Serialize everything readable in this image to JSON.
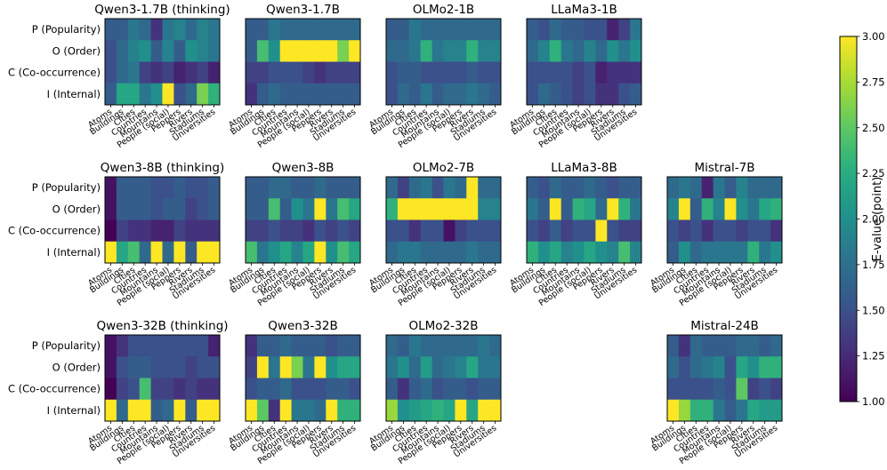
{
  "chart_data": {
    "type": "heatmap",
    "metric_label": "E-value (point)",
    "colormap": "viridis",
    "vmin": 1.0,
    "vmax": 3.0,
    "colorbar_ticks": [
      "1.00",
      "1.25",
      "1.50",
      "1.75",
      "2.00",
      "2.25",
      "2.50",
      "2.75",
      "3.00"
    ],
    "rows": [
      "P (Popularity)",
      "O (Order)",
      "C (Co-occurrence)",
      "I (Internal)"
    ],
    "columns": [
      "Atoms",
      "Buildings",
      "Cities",
      "Countries",
      "Mountains",
      "People (social)",
      "Peppers",
      "Rivers",
      "Stadiums",
      "Universities"
    ],
    "panels": [
      {
        "title": "Qwen3-1.7B (thinking)",
        "values": [
          [
            1.6,
            1.6,
            1.8,
            1.7,
            1.3,
            1.8,
            1.9,
            1.7,
            1.9,
            1.8
          ],
          [
            1.5,
            1.7,
            1.9,
            2.0,
            1.6,
            1.9,
            1.6,
            2.0,
            1.9,
            1.8
          ],
          [
            1.5,
            1.7,
            1.8,
            1.4,
            1.3,
            1.4,
            1.2,
            1.3,
            1.4,
            1.2
          ],
          [
            1.6,
            2.2,
            2.2,
            1.8,
            2.0,
            3.0,
            1.5,
            1.7,
            2.6,
            2.3
          ]
        ]
      },
      {
        "title": "Qwen3-1.7B",
        "values": [
          [
            1.6,
            1.6,
            1.8,
            1.7,
            1.7,
            1.7,
            1.7,
            1.7,
            1.7,
            1.7
          ],
          [
            1.6,
            2.4,
            2.0,
            3.0,
            3.0,
            3.0,
            3.0,
            3.0,
            2.6,
            3.0
          ],
          [
            1.4,
            1.4,
            1.5,
            1.5,
            1.5,
            1.4,
            1.3,
            1.4,
            1.4,
            1.4
          ],
          [
            1.3,
            1.6,
            1.7,
            1.6,
            1.6,
            1.6,
            1.6,
            1.6,
            1.6,
            1.6
          ]
        ]
      },
      {
        "title": "OLMo2-1B",
        "values": [
          [
            1.6,
            1.6,
            1.8,
            1.7,
            1.7,
            1.7,
            1.7,
            1.7,
            1.7,
            1.7
          ],
          [
            1.7,
            1.7,
            1.8,
            2.3,
            1.8,
            1.9,
            1.9,
            2.3,
            1.9,
            1.9
          ],
          [
            1.5,
            1.6,
            1.6,
            1.5,
            1.5,
            1.5,
            1.5,
            1.6,
            1.5,
            1.5
          ],
          [
            1.5,
            1.7,
            1.6,
            1.8,
            1.6,
            1.7,
            1.7,
            1.8,
            1.7,
            1.6
          ]
        ]
      },
      {
        "title": "LLaMa3-1B",
        "values": [
          [
            1.6,
            1.5,
            1.7,
            1.6,
            1.6,
            1.5,
            1.5,
            1.2,
            1.4,
            1.8
          ],
          [
            1.7,
            1.9,
            2.3,
            1.8,
            1.7,
            1.9,
            1.7,
            2.0,
            1.8,
            2.0
          ],
          [
            1.5,
            1.5,
            1.5,
            1.5,
            1.4,
            1.5,
            1.2,
            1.3,
            1.3,
            1.3
          ],
          [
            1.5,
            1.7,
            1.6,
            1.5,
            1.4,
            1.5,
            1.3,
            1.3,
            1.5,
            1.6
          ]
        ]
      },
      {
        "title": "Qwen3-8B (thinking)",
        "values": [
          [
            1.1,
            1.6,
            1.6,
            1.6,
            1.5,
            1.5,
            1.6,
            1.5,
            1.5,
            1.6
          ],
          [
            1.1,
            1.6,
            1.6,
            1.6,
            1.5,
            1.6,
            1.6,
            1.4,
            1.5,
            1.6
          ],
          [
            1.0,
            1.4,
            1.3,
            1.3,
            1.2,
            1.2,
            1.4,
            1.3,
            1.3,
            1.3
          ],
          [
            3.0,
            2.2,
            2.4,
            1.7,
            3.0,
            1.7,
            3.0,
            1.6,
            3.0,
            3.0
          ]
        ]
      },
      {
        "title": "Qwen3-8B",
        "values": [
          [
            1.6,
            1.6,
            1.7,
            1.7,
            1.6,
            1.6,
            1.7,
            1.6,
            1.6,
            1.6
          ],
          [
            1.6,
            1.6,
            2.4,
            1.6,
            2.0,
            1.8,
            3.0,
            1.8,
            2.4,
            2.2
          ],
          [
            1.4,
            1.4,
            1.5,
            1.4,
            1.4,
            1.3,
            1.5,
            1.4,
            1.5,
            1.4
          ],
          [
            2.4,
            1.8,
            2.0,
            2.2,
            1.9,
            2.2,
            3.0,
            2.0,
            2.4,
            2.2
          ]
        ]
      },
      {
        "title": "OLMo2-7B",
        "values": [
          [
            1.7,
            1.4,
            1.7,
            1.8,
            1.5,
            1.8,
            1.7,
            3.0,
            1.7,
            1.7
          ],
          [
            2.3,
            3.0,
            3.0,
            3.0,
            3.0,
            3.0,
            3.0,
            3.0,
            1.9,
            1.9
          ],
          [
            1.5,
            1.5,
            1.3,
            1.5,
            1.5,
            1.1,
            1.4,
            1.5,
            1.5,
            1.5
          ],
          [
            1.7,
            1.8,
            1.8,
            1.7,
            1.7,
            1.7,
            1.7,
            1.8,
            1.7,
            1.7
          ]
        ]
      },
      {
        "title": "LLaMa3-8B",
        "values": [
          [
            1.6,
            1.5,
            1.7,
            1.6,
            1.6,
            1.7,
            1.6,
            1.5,
            1.6,
            1.6
          ],
          [
            1.8,
            1.6,
            3.0,
            1.6,
            2.3,
            2.2,
            1.7,
            3.0,
            2.3,
            1.8
          ],
          [
            1.5,
            1.4,
            1.6,
            1.4,
            1.5,
            1.5,
            3.0,
            1.5,
            1.4,
            1.4
          ],
          [
            2.3,
            2.0,
            2.2,
            1.9,
            2.0,
            2.2,
            2.0,
            1.9,
            2.4,
            1.9
          ]
        ]
      },
      {
        "title": "Mistral-7B",
        "values": [
          [
            1.7,
            1.8,
            1.7,
            1.2,
            1.8,
            1.6,
            1.9,
            1.7,
            1.7,
            1.7
          ],
          [
            1.9,
            3.0,
            1.6,
            2.3,
            1.9,
            3.0,
            2.0,
            1.8,
            2.2,
            2.3
          ],
          [
            1.5,
            1.4,
            1.5,
            1.3,
            1.5,
            1.5,
            1.4,
            1.5,
            1.5,
            1.3
          ],
          [
            1.6,
            2.0,
            1.7,
            1.8,
            1.8,
            1.8,
            1.8,
            2.3,
            1.8,
            2.0
          ]
        ]
      },
      {
        "title": "Qwen3-32B (thinking)",
        "values": [
          [
            1.1,
            1.3,
            1.5,
            1.5,
            1.5,
            1.5,
            1.5,
            1.5,
            1.5,
            1.2
          ],
          [
            1.1,
            1.5,
            1.6,
            1.6,
            1.5,
            1.5,
            1.5,
            1.4,
            1.5,
            1.5
          ],
          [
            1.0,
            1.4,
            1.5,
            2.4,
            1.4,
            1.4,
            1.3,
            1.4,
            1.3,
            1.3
          ],
          [
            3.0,
            1.7,
            3.0,
            3.0,
            1.6,
            1.7,
            3.0,
            1.6,
            3.0,
            3.0
          ]
        ]
      },
      {
        "title": "Qwen3-32B",
        "values": [
          [
            1.3,
            1.6,
            1.6,
            1.7,
            1.6,
            1.6,
            1.6,
            1.5,
            1.6,
            1.6
          ],
          [
            1.4,
            3.0,
            1.8,
            3.0,
            2.6,
            1.8,
            3.0,
            2.0,
            2.2,
            2.2
          ],
          [
            1.5,
            1.6,
            1.6,
            1.7,
            1.5,
            1.5,
            1.5,
            1.6,
            1.6,
            1.5
          ],
          [
            3.0,
            2.5,
            1.3,
            3.0,
            1.8,
            1.8,
            1.7,
            3.0,
            2.3,
            2.3
          ]
        ]
      },
      {
        "title": "OLMo2-32B",
        "values": [
          [
            1.7,
            1.6,
            1.8,
            1.7,
            1.7,
            1.7,
            1.7,
            1.7,
            1.8,
            1.7
          ],
          [
            1.8,
            2.0,
            1.7,
            2.1,
            1.7,
            1.8,
            1.9,
            2.2,
            1.8,
            1.8
          ],
          [
            1.6,
            1.3,
            1.6,
            1.7,
            1.5,
            1.6,
            1.6,
            1.5,
            1.6,
            1.6
          ],
          [
            2.7,
            2.0,
            2.1,
            2.2,
            2.3,
            2.2,
            3.0,
            2.2,
            3.0,
            3.0
          ]
        ]
      },
      {
        "title": "Mistral-24B",
        "values": [
          [
            1.6,
            1.3,
            1.7,
            1.6,
            1.6,
            1.6,
            1.7,
            1.7,
            1.6,
            1.7
          ],
          [
            1.7,
            1.5,
            1.7,
            1.8,
            1.9,
            1.5,
            2.2,
            2.0,
            2.3,
            2.3
          ],
          [
            1.5,
            1.5,
            1.5,
            1.5,
            1.6,
            1.5,
            2.5,
            1.4,
            1.5,
            1.4
          ],
          [
            3.0,
            2.7,
            2.3,
            2.3,
            1.8,
            1.6,
            1.8,
            2.2,
            2.1,
            2.1
          ]
        ]
      }
    ]
  }
}
